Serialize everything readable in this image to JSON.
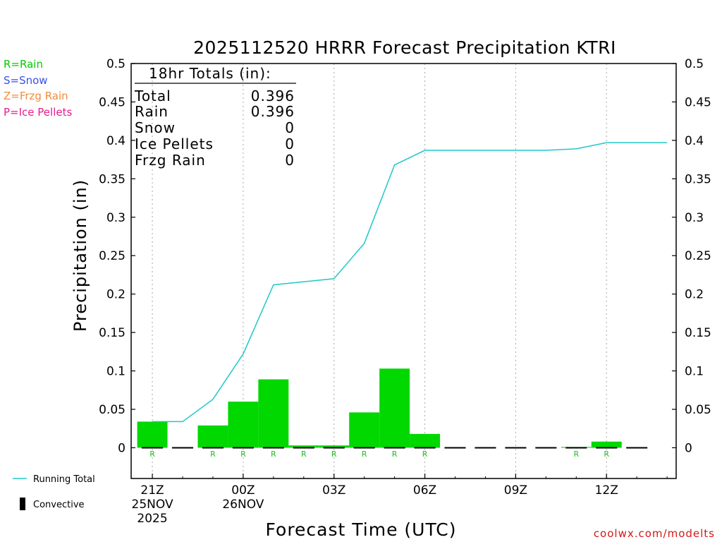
{
  "chart_data": {
    "type": "bar",
    "title": "2025112520 HRRR Forecast Precipitation KTRI",
    "ylabel": "Precipitation (in)",
    "xlabel": "Forecast Time (UTC)",
    "ylim": [
      -0.04,
      0.5
    ],
    "xlim": [
      20.3,
      38.3
    ],
    "y_ticks": [
      0,
      0.05,
      0.1,
      0.15,
      0.2,
      0.25,
      0.3,
      0.35,
      0.4,
      0.45,
      0.5
    ],
    "y_tick_labels": [
      "0",
      "0.05",
      "0.1",
      "0.15",
      "0.2",
      "0.25",
      "0.3",
      "0.35",
      "0.4",
      "0.45",
      "0.5"
    ],
    "x_ticks": [
      {
        "x": 21,
        "label": [
          "21Z",
          "25NOV",
          "2025"
        ]
      },
      {
        "x": 24,
        "label": [
          "00Z",
          "26NOV"
        ]
      },
      {
        "x": 27,
        "label": [
          "03Z"
        ]
      },
      {
        "x": 30,
        "label": [
          "06Z"
        ]
      },
      {
        "x": 33,
        "label": [
          "09Z"
        ]
      },
      {
        "x": 36,
        "label": [
          "12Z"
        ]
      }
    ],
    "grid": "vertical dotted at x ticks",
    "hourly": {
      "x": [
        21,
        22,
        23,
        24,
        25,
        26,
        27,
        28,
        29,
        30,
        31,
        32,
        33,
        34,
        35,
        36,
        37
      ],
      "values": [
        0.034,
        0,
        0.029,
        0.06,
        0.089,
        0.003,
        0.003,
        0.046,
        0.103,
        0.018,
        0,
        0,
        0,
        0,
        0.001,
        0.008,
        0
      ],
      "ptype": [
        "R",
        "",
        "R",
        "R",
        "R",
        "R",
        "R",
        "R",
        "R",
        "R",
        "",
        "",
        "",
        "",
        "R",
        "R",
        ""
      ],
      "color": "#00d800"
    },
    "running_total": {
      "name": "Running Total",
      "color": "#20c8c8",
      "x": [
        21,
        22,
        23,
        24,
        25,
        26,
        27,
        28,
        29,
        30,
        31,
        32,
        33,
        34,
        35,
        36,
        37,
        38
      ],
      "values": [
        0.034,
        0.034,
        0.063,
        0.122,
        0.212,
        0.216,
        0.22,
        0.266,
        0.368,
        0.387,
        0.387,
        0.387,
        0.387,
        0.387,
        0.389,
        0.397,
        0.397,
        0.397
      ]
    },
    "totals_box": {
      "header": "18hr Totals (in):",
      "rows": [
        {
          "label": "Total",
          "value": "0.396"
        },
        {
          "label": "Rain",
          "value": "0.396"
        },
        {
          "label": "Snow",
          "value": "0"
        },
        {
          "label": "Ice Pellets",
          "value": "0"
        },
        {
          "label": "Frzg Rain",
          "value": "0"
        }
      ]
    },
    "ptype_legend": [
      {
        "label": "R=Rain",
        "color": "#00cc00"
      },
      {
        "label": "S=Snow",
        "color": "#3c50e6"
      },
      {
        "label": "Z=Frzg Rain",
        "color": "#f08c3c"
      },
      {
        "label": "P=Ice Pellets",
        "color": "#e61e8c"
      }
    ],
    "bottom_legend": {
      "running_total": "Running Total",
      "convective": "Convective"
    },
    "credit": "coolwx.com/modelts",
    "credit_color": "#d01818"
  }
}
